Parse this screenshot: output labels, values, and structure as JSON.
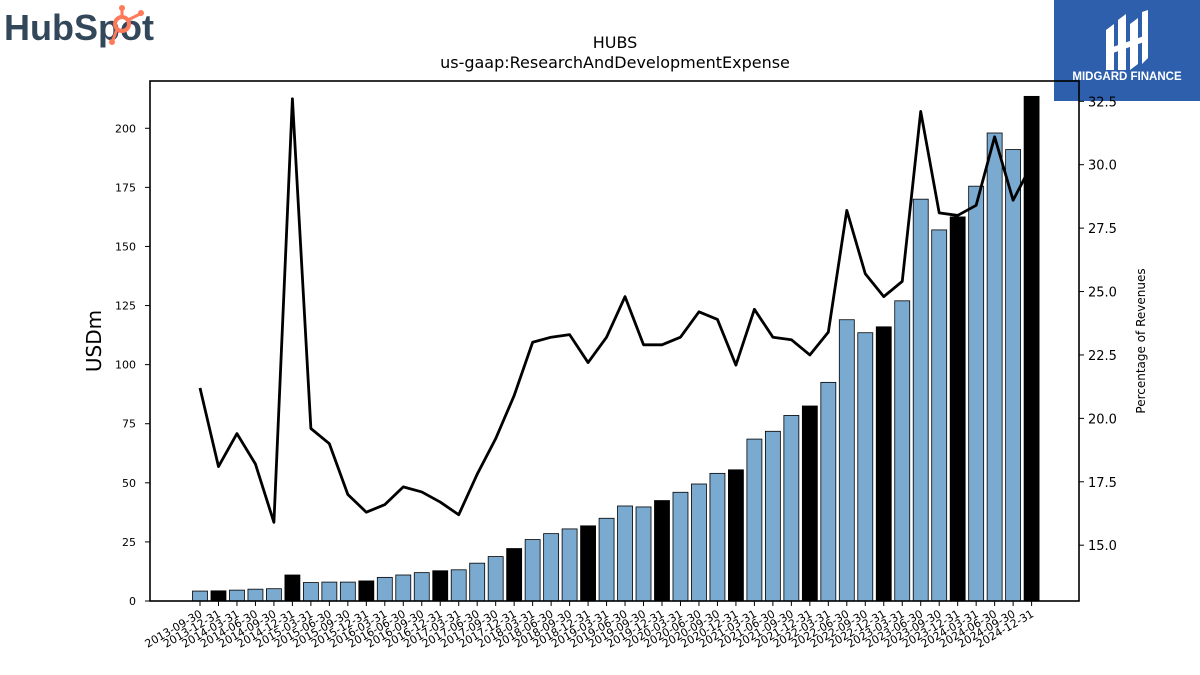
{
  "logos": {
    "left_wordmark": "HubSpot",
    "right_wordmark": "MIDGARD FINANCE"
  },
  "colors": {
    "bar_quarter": "#7aaad0",
    "bar_year_end": "#000000",
    "line": "#000000",
    "hubspot_orange": "#ff7a59",
    "hubspot_navy": "#33475b",
    "midgard_blue": "#2d5fad"
  },
  "chart_data": {
    "type": "bar",
    "title": "HUBS",
    "subtitle": "us-gaap:ResearchAndDevelopmentExpense",
    "ylabel": "USDm",
    "y2label": "Percentage of Revenues",
    "ylim": [
      0,
      220
    ],
    "y2lim": [
      12.8,
      33.3
    ],
    "yticks": [
      0,
      25,
      50,
      75,
      100,
      125,
      150,
      175,
      200
    ],
    "y2ticks": [
      15.0,
      17.5,
      20.0,
      22.5,
      25.0,
      27.5,
      30.0,
      32.5
    ],
    "grid": false,
    "categories": [
      "2013-09-30",
      "2013-12-31",
      "2014-03-31",
      "2014-06-30",
      "2014-09-30",
      "2014-12-31",
      "2015-03-31",
      "2015-06-30",
      "2015-09-30",
      "2015-12-31",
      "2016-03-31",
      "2016-06-30",
      "2016-09-30",
      "2016-12-31",
      "2017-03-31",
      "2017-06-30",
      "2017-09-30",
      "2017-12-31",
      "2018-03-31",
      "2018-06-30",
      "2018-09-30",
      "2018-12-31",
      "2019-03-31",
      "2019-06-30",
      "2019-09-30",
      "2019-12-31",
      "2020-03-31",
      "2020-06-30",
      "2020-09-30",
      "2020-12-31",
      "2021-03-31",
      "2021-06-30",
      "2021-09-30",
      "2021-12-31",
      "2022-03-31",
      "2022-06-30",
      "2022-09-30",
      "2022-12-31",
      "2023-03-31",
      "2023-06-30",
      "2023-09-30",
      "2023-12-31",
      "2024-03-31",
      "2024-06-30",
      "2024-09-30",
      "2024-12-31"
    ],
    "series": [
      {
        "values": [
          4.2,
          4.3,
          4.6,
          5.0,
          5.2,
          11.0,
          7.8,
          8.0,
          8.0,
          8.5,
          10.0,
          11.0,
          12.0,
          12.8,
          13.2,
          16.0,
          18.8,
          22.2,
          26.0,
          28.5,
          30.5,
          31.8,
          35.0,
          40.2,
          39.8,
          42.5,
          46.0,
          49.5,
          54.0,
          55.5,
          68.5,
          71.8,
          78.5,
          82.5,
          92.5,
          119.0,
          113.5,
          116.0,
          127.0,
          170.0,
          157.0,
          162.5,
          175.5,
          198.0,
          191.0,
          213.5
        ],
        "year_end": [
          false,
          true,
          false,
          false,
          false,
          true,
          false,
          false,
          false,
          true,
          false,
          false,
          false,
          true,
          false,
          false,
          false,
          true,
          false,
          false,
          false,
          true,
          false,
          false,
          false,
          true,
          false,
          false,
          false,
          true,
          false,
          false,
          false,
          true,
          false,
          false,
          false,
          true,
          false,
          false,
          false,
          true,
          false,
          false,
          false,
          true
        ]
      },
      {
        "type": "line",
        "axis": "right",
        "values": [
          21.2,
          18.1,
          19.4,
          18.2,
          15.9,
          32.6,
          19.6,
          19.0,
          17.0,
          16.3,
          16.6,
          17.3,
          17.1,
          16.7,
          16.2,
          17.8,
          19.2,
          20.9,
          23.0,
          23.2,
          23.3,
          22.2,
          23.2,
          24.8,
          22.9,
          22.9,
          23.2,
          24.2,
          23.9,
          22.1,
          24.3,
          23.2,
          23.1,
          22.5,
          23.4,
          28.2,
          25.7,
          24.8,
          25.4,
          32.1,
          28.1,
          28.0,
          28.4,
          31.1,
          28.6,
          30.0
        ]
      }
    ]
  }
}
